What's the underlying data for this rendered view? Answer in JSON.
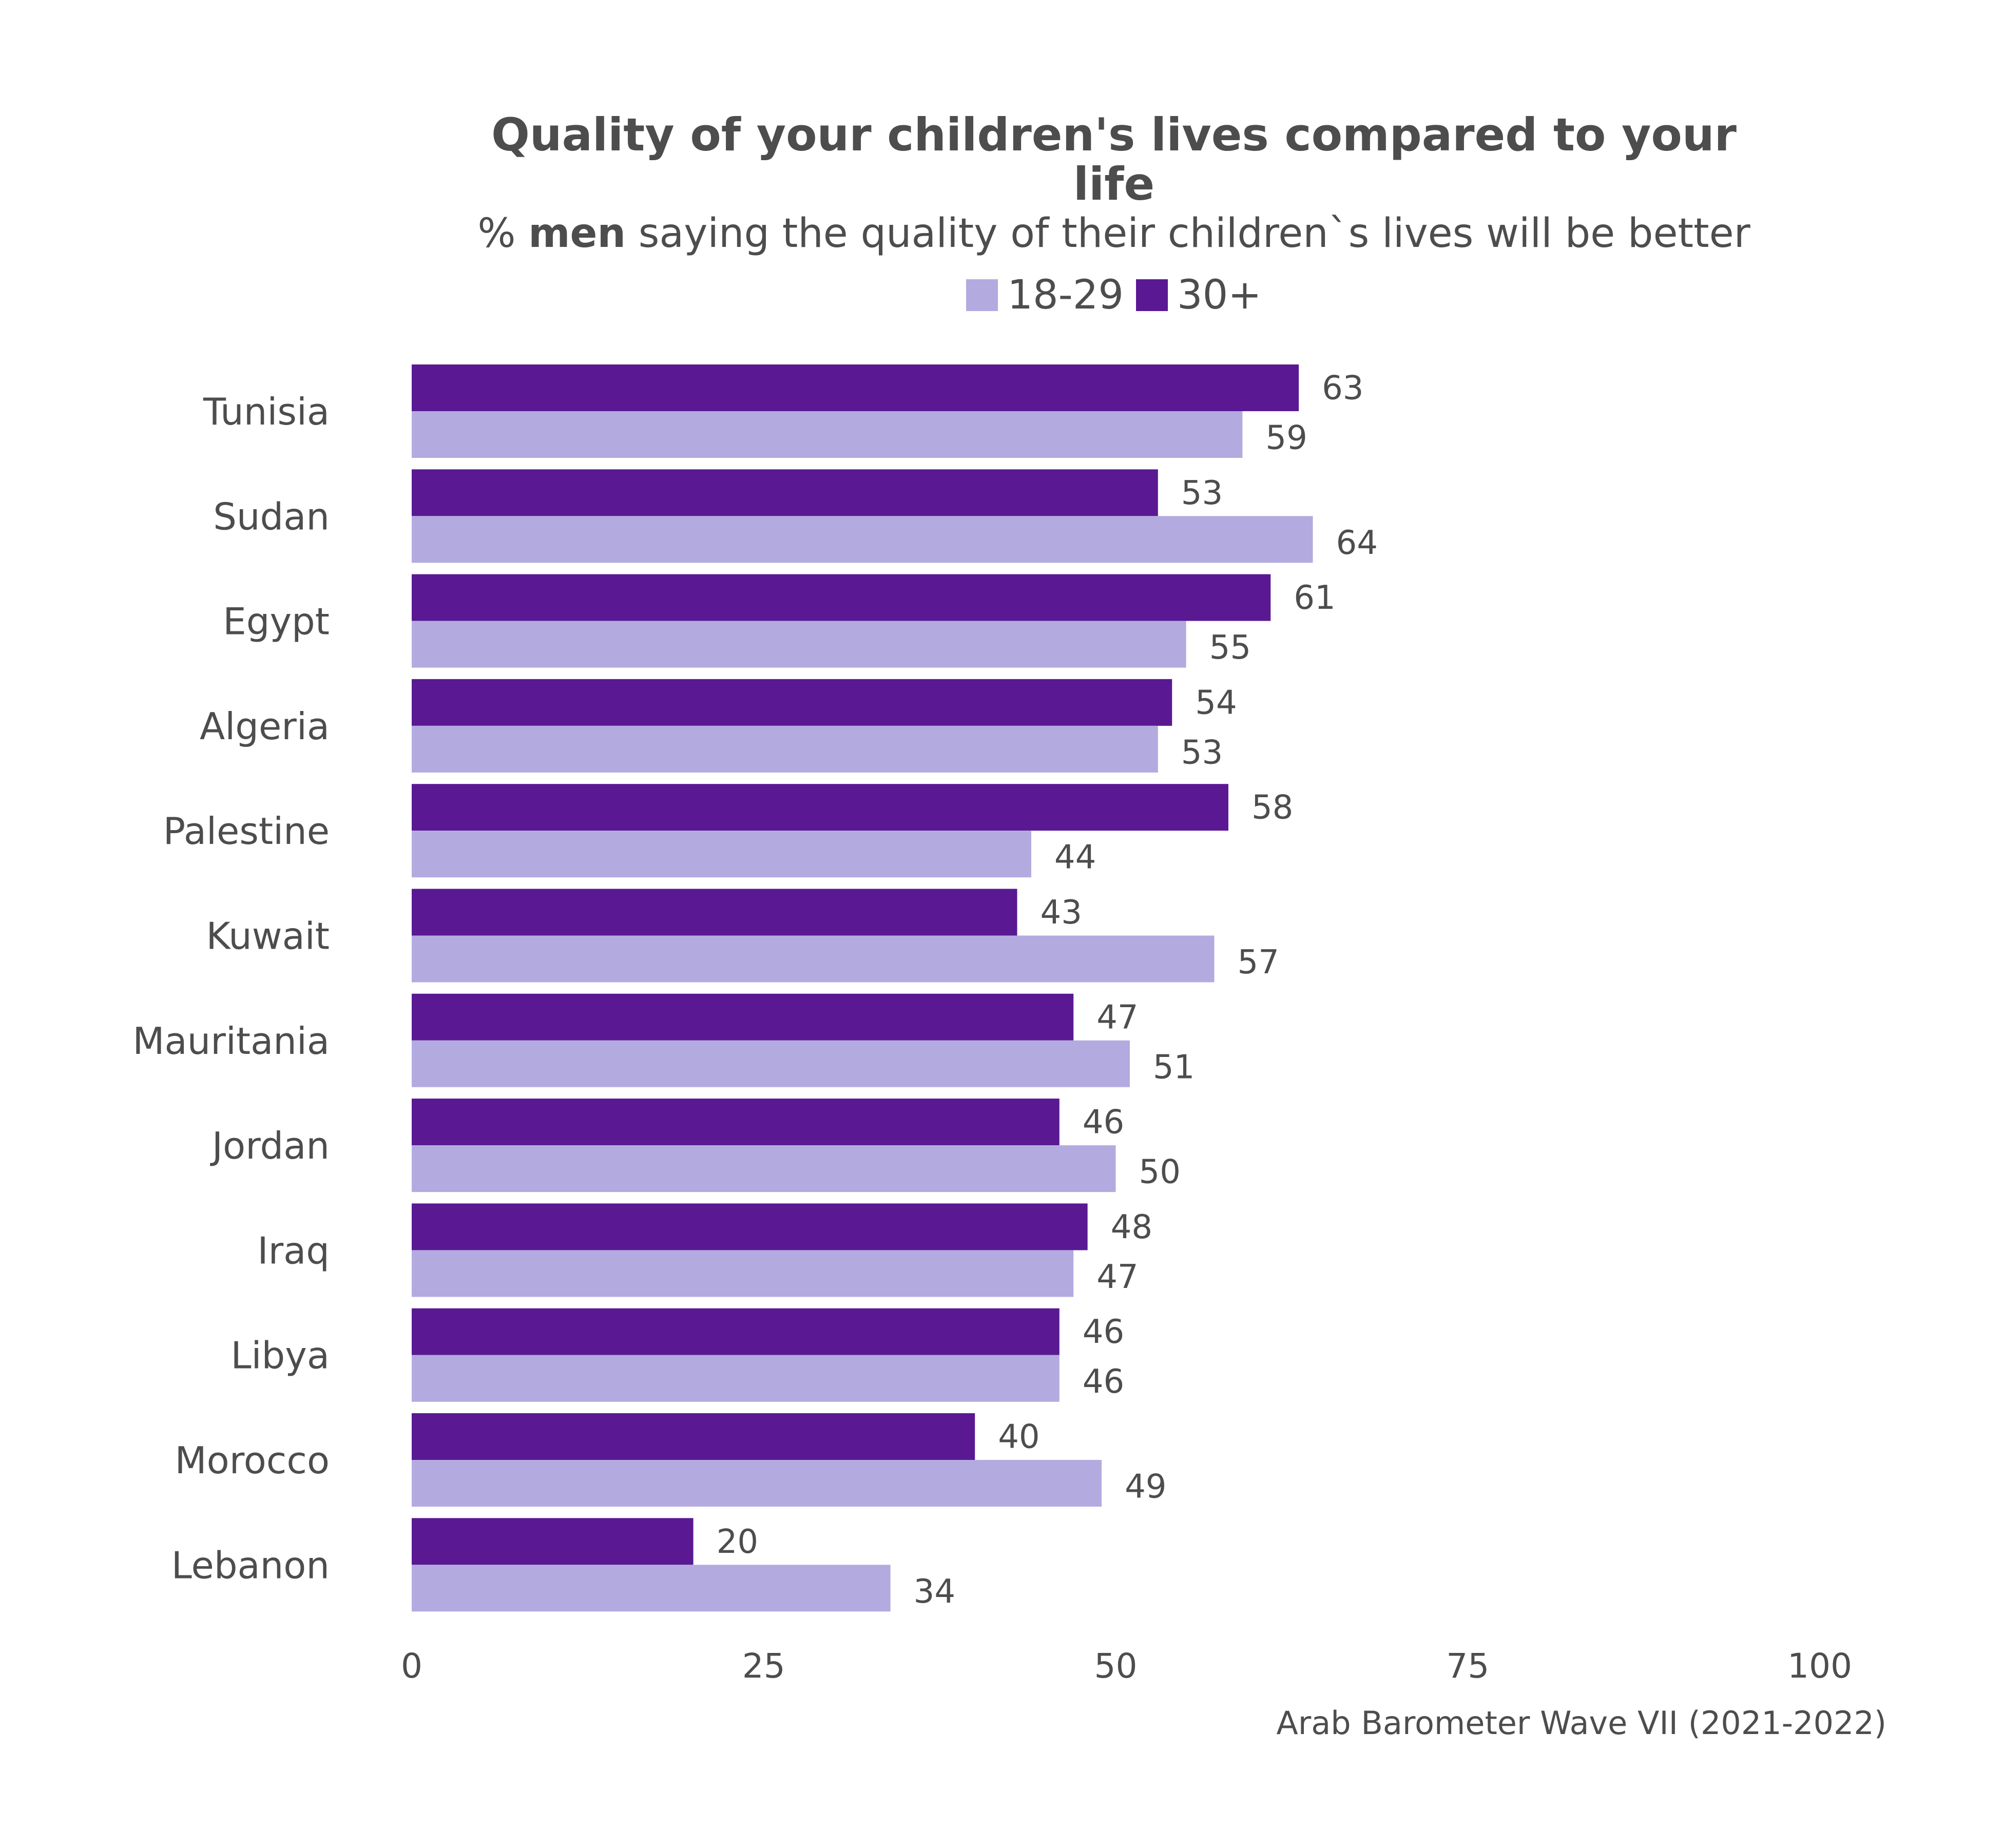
{
  "chart_data": {
    "type": "bar",
    "orientation": "horizontal",
    "title": "Quality of your children's lives compared to your life",
    "subtitle_prefix": "% ",
    "subtitle_bold": "men",
    "subtitle_rest": " saying the quality of their children`s lives will be better",
    "categories": [
      "Tunisia",
      "Sudan",
      "Egypt",
      "Algeria",
      "Palestine",
      "Kuwait",
      "Mauritania",
      "Jordan",
      "Iraq",
      "Libya",
      "Morocco",
      "Lebanon"
    ],
    "series": [
      {
        "name": "18-29",
        "color": "#b3abdf",
        "values": [
          59,
          64,
          55,
          53,
          44,
          57,
          51,
          50,
          47,
          46,
          49,
          34
        ]
      },
      {
        "name": "30+",
        "color": "#5a1993",
        "values": [
          63,
          53,
          61,
          54,
          58,
          43,
          47,
          46,
          48,
          46,
          40,
          20
        ]
      }
    ],
    "xlim": [
      0,
      100
    ],
    "xticks": [
      0,
      25,
      50,
      75,
      100
    ],
    "xlabel": "",
    "ylabel": "",
    "grid": false,
    "legend_position": "top-center",
    "caption": "Arab Barometer Wave VII (2021-2022)"
  }
}
